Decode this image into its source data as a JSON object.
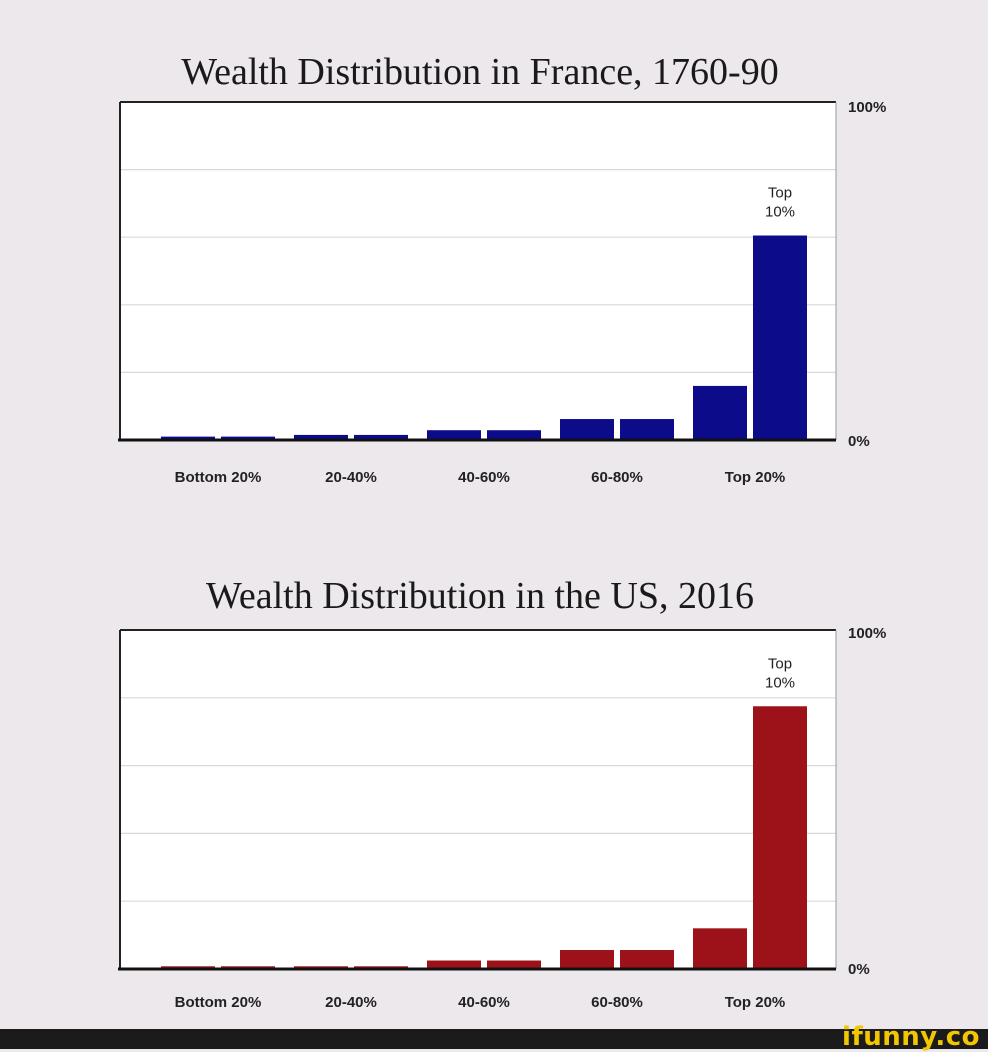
{
  "chart_data": [
    {
      "type": "bar",
      "title": "Wealth Distribution in France, 1760-90",
      "color": "#0c0c8a",
      "categories": [
        "Bottom 20%",
        "20-40%",
        "40-60%",
        "60-80%",
        "Top 20%"
      ],
      "series_note": "",
      "bars": [
        {
          "category": "Bottom 20%",
          "value": 1
        },
        {
          "category": "Bottom 20%",
          "value": 1
        },
        {
          "category": "20-40%",
          "value": 1.5
        },
        {
          "category": "20-40%",
          "value": 1.5
        },
        {
          "category": "40-60%",
          "value": 2.9
        },
        {
          "category": "40-60%",
          "value": 2.9
        },
        {
          "category": "60-80%",
          "value": 6.2
        },
        {
          "category": "60-80%",
          "value": 6.2
        },
        {
          "category": "Top 20%",
          "value": 16
        },
        {
          "category": "Top 20%",
          "value": 60.5,
          "annotation": [
            "Top",
            "10%"
          ]
        }
      ],
      "y_ticks": [
        "100%",
        "0%"
      ],
      "ylim": [
        0,
        100
      ],
      "grid": true
    },
    {
      "type": "bar",
      "title": "Wealth Distribution in the US, 2016",
      "color": "#9c1218",
      "categories": [
        "Bottom 20%",
        "20-40%",
        "40-60%",
        "60-80%",
        "Top 20%"
      ],
      "series_note": "",
      "bars": [
        {
          "category": "Bottom 20%",
          "value": 0.8
        },
        {
          "category": "Bottom 20%",
          "value": 0.8
        },
        {
          "category": "20-40%",
          "value": 0.8
        },
        {
          "category": "20-40%",
          "value": 0.8
        },
        {
          "category": "40-60%",
          "value": 2.5
        },
        {
          "category": "40-60%",
          "value": 2.5
        },
        {
          "category": "60-80%",
          "value": 5.6
        },
        {
          "category": "60-80%",
          "value": 5.6
        },
        {
          "category": "Top 20%",
          "value": 12
        },
        {
          "category": "Top 20%",
          "value": 77.5,
          "annotation": [
            "Top",
            "10%"
          ]
        }
      ],
      "y_ticks": [
        "100%",
        "0%"
      ],
      "ylim": [
        0,
        100
      ],
      "grid": true
    }
  ],
  "footer": {
    "watermark": "ifunny.co",
    "colors": {
      "bar": "#1b1b1b",
      "text": "#f2c600"
    }
  }
}
